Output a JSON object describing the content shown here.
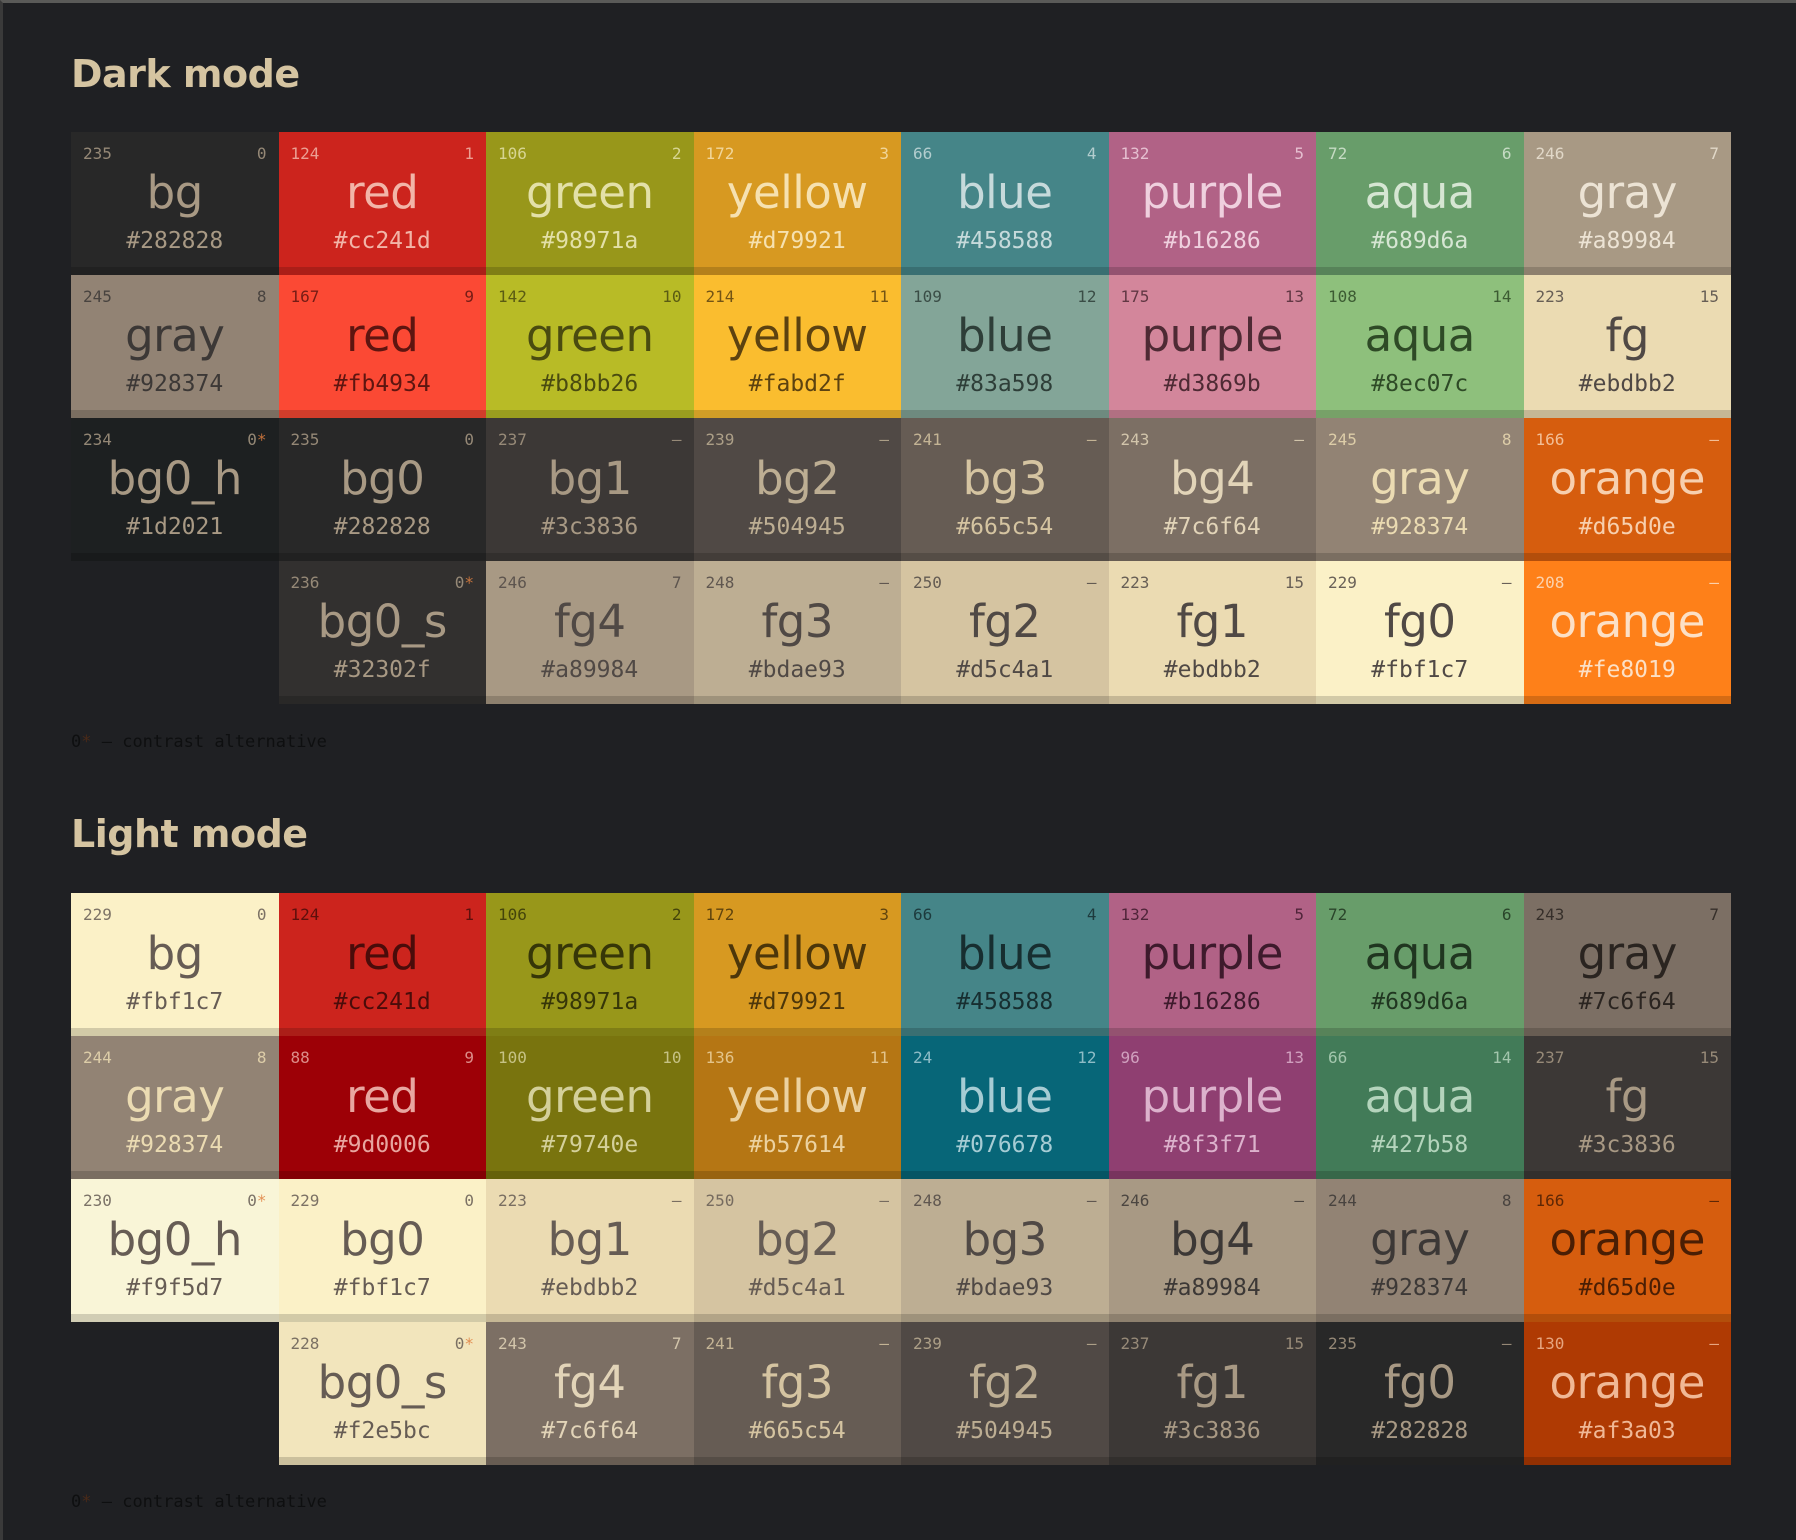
{
  "sections": [
    {
      "title": "Dark mode",
      "note": {
        "marker": "0",
        "star": "*",
        "text": " — contrast alternative"
      },
      "rows": [
        [
          {
            "left": "235",
            "right": "0",
            "name": "bg",
            "hex": "#282828",
            "bg": "#282828",
            "fg": "#a89984"
          },
          {
            "left": "124",
            "right": "1",
            "name": "red",
            "hex": "#cc241d",
            "bg": "#cc241d",
            "fg": "#f2b5a8"
          },
          {
            "left": "106",
            "right": "2",
            "name": "green",
            "hex": "#98971a",
            "bg": "#98971a",
            "fg": "#e3e0a8"
          },
          {
            "left": "172",
            "right": "3",
            "name": "yellow",
            "hex": "#d79921",
            "bg": "#d79921",
            "fg": "#f6e1b0"
          },
          {
            "left": "66",
            "right": "4",
            "name": "blue",
            "hex": "#458588",
            "bg": "#458588",
            "fg": "#c6dadb"
          },
          {
            "left": "132",
            "right": "5",
            "name": "purple",
            "hex": "#b16286",
            "bg": "#b16286",
            "fg": "#efd0de"
          },
          {
            "left": "72",
            "right": "6",
            "name": "aqua",
            "hex": "#689d6a",
            "bg": "#689d6a",
            "fg": "#d6e6d3"
          },
          {
            "left": "246",
            "right": "7",
            "name": "gray",
            "hex": "#a89984",
            "bg": "#a89984",
            "fg": "#ece3d4"
          }
        ],
        [
          {
            "left": "245",
            "right": "8",
            "name": "gray",
            "hex": "#928374",
            "bg": "#928374",
            "fg": "#3c3836"
          },
          {
            "left": "167",
            "right": "9",
            "name": "red",
            "hex": "#fb4934",
            "bg": "#fb4934",
            "fg": "#5e1510"
          },
          {
            "left": "142",
            "right": "10",
            "name": "green",
            "hex": "#b8bb26",
            "bg": "#b8bb26",
            "fg": "#4a4b10"
          },
          {
            "left": "214",
            "right": "11",
            "name": "yellow",
            "hex": "#fabd2f",
            "bg": "#fabd2f",
            "fg": "#5c4210"
          },
          {
            "left": "109",
            "right": "12",
            "name": "blue",
            "hex": "#83a598",
            "bg": "#83a598",
            "fg": "#2e3e38"
          },
          {
            "left": "175",
            "right": "13",
            "name": "purple",
            "hex": "#d3869b",
            "bg": "#d3869b",
            "fg": "#4e2a34"
          },
          {
            "left": "108",
            "right": "14",
            "name": "aqua",
            "hex": "#8ec07c",
            "bg": "#8ec07c",
            "fg": "#2e4a26"
          },
          {
            "left": "223",
            "right": "15",
            "name": "fg",
            "hex": "#ebdbb2",
            "bg": "#ebdbb2",
            "fg": "#504945"
          }
        ],
        [
          {
            "left": "234",
            "right": "0",
            "star": "*",
            "name": "bg0_h",
            "hex": "#1d2021",
            "bg": "#1d2021",
            "fg": "#a89984"
          },
          {
            "left": "235",
            "right": "0",
            "name": "bg0",
            "hex": "#282828",
            "bg": "#282828",
            "fg": "#a89984"
          },
          {
            "left": "237",
            "right": "—",
            "name": "bg1",
            "hex": "#3c3836",
            "bg": "#3c3836",
            "fg": "#a89984"
          },
          {
            "left": "239",
            "right": "—",
            "name": "bg2",
            "hex": "#504945",
            "bg": "#504945",
            "fg": "#bdae93"
          },
          {
            "left": "241",
            "right": "—",
            "name": "bg3",
            "hex": "#665c54",
            "bg": "#665c54",
            "fg": "#d5c4a1"
          },
          {
            "left": "243",
            "right": "—",
            "name": "bg4",
            "hex": "#7c6f64",
            "bg": "#7c6f64",
            "fg": "#e2d4b8"
          },
          {
            "left": "245",
            "right": "8",
            "name": "gray",
            "hex": "#928374",
            "bg": "#928374",
            "fg": "#ebdbb2"
          },
          {
            "left": "166",
            "right": "—",
            "name": "orange",
            "hex": "#d65d0e",
            "bg": "#d65d0e",
            "fg": "#f7cfae"
          }
        ],
        [
          null,
          {
            "left": "236",
            "right": "0",
            "star": "*",
            "name": "bg0_s",
            "hex": "#32302f",
            "bg": "#32302f",
            "fg": "#a89984"
          },
          {
            "left": "246",
            "right": "7",
            "name": "fg4",
            "hex": "#a89984",
            "bg": "#a89984",
            "fg": "#504945"
          },
          {
            "left": "248",
            "right": "—",
            "name": "fg3",
            "hex": "#bdae93",
            "bg": "#bdae93",
            "fg": "#504945"
          },
          {
            "left": "250",
            "right": "—",
            "name": "fg2",
            "hex": "#d5c4a1",
            "bg": "#d5c4a1",
            "fg": "#504945"
          },
          {
            "left": "223",
            "right": "15",
            "name": "fg1",
            "hex": "#ebdbb2",
            "bg": "#ebdbb2",
            "fg": "#504945"
          },
          {
            "left": "229",
            "right": "—",
            "name": "fg0",
            "hex": "#fbf1c7",
            "bg": "#fbf1c7",
            "fg": "#504945"
          },
          {
            "left": "208",
            "right": "—",
            "name": "orange",
            "hex": "#fe8019",
            "bg": "#fe8019",
            "fg": "#fce0c6"
          }
        ]
      ]
    },
    {
      "title": "Light mode",
      "note": {
        "marker": "0",
        "star": "*",
        "text": " — contrast alternative"
      },
      "rows": [
        [
          {
            "left": "229",
            "right": "0",
            "name": "bg",
            "hex": "#fbf1c7",
            "bg": "#fbf1c7",
            "fg": "#665c54"
          },
          {
            "left": "124",
            "right": "1",
            "name": "red",
            "hex": "#cc241d",
            "bg": "#cc241d",
            "fg": "#4a0c0a"
          },
          {
            "left": "106",
            "right": "2",
            "name": "green",
            "hex": "#98971a",
            "bg": "#98971a",
            "fg": "#363608"
          },
          {
            "left": "172",
            "right": "3",
            "name": "yellow",
            "hex": "#d79921",
            "bg": "#d79921",
            "fg": "#4c360a"
          },
          {
            "left": "66",
            "right": "4",
            "name": "blue",
            "hex": "#458588",
            "bg": "#458588",
            "fg": "#172e30"
          },
          {
            "left": "132",
            "right": "5",
            "name": "purple",
            "hex": "#b16286",
            "bg": "#b16286",
            "fg": "#3e1a2c"
          },
          {
            "left": "72",
            "right": "6",
            "name": "aqua",
            "hex": "#689d6a",
            "bg": "#689d6a",
            "fg": "#203620"
          },
          {
            "left": "243",
            "right": "7",
            "name": "gray",
            "hex": "#7c6f64",
            "bg": "#7c6f64",
            "fg": "#2a2420"
          }
        ],
        [
          {
            "left": "244",
            "right": "8",
            "name": "gray",
            "hex": "#928374",
            "bg": "#928374",
            "fg": "#ebdbb2"
          },
          {
            "left": "88",
            "right": "9",
            "name": "red",
            "hex": "#9d0006",
            "bg": "#9d0006",
            "fg": "#e8a6a0"
          },
          {
            "left": "100",
            "right": "10",
            "name": "green",
            "hex": "#79740e",
            "bg": "#79740e",
            "fg": "#d4d09a"
          },
          {
            "left": "136",
            "right": "11",
            "name": "yellow",
            "hex": "#b57614",
            "bg": "#b57614",
            "fg": "#ecd2a0"
          },
          {
            "left": "24",
            "right": "12",
            "name": "blue",
            "hex": "#076678",
            "bg": "#076678",
            "fg": "#a6ccd4"
          },
          {
            "left": "96",
            "right": "13",
            "name": "purple",
            "hex": "#8f3f71",
            "bg": "#8f3f71",
            "fg": "#dcb2cc"
          },
          {
            "left": "66",
            "right": "14",
            "name": "aqua",
            "hex": "#427b58",
            "bg": "#427b58",
            "fg": "#b4d4bc"
          },
          {
            "left": "237",
            "right": "15",
            "name": "fg",
            "hex": "#3c3836",
            "bg": "#3c3836",
            "fg": "#a89984"
          }
        ],
        [
          {
            "left": "230",
            "right": "0",
            "star": "*",
            "name": "bg0_h",
            "hex": "#f9f5d7",
            "bg": "#f9f5d7",
            "fg": "#665c54"
          },
          {
            "left": "229",
            "right": "0",
            "name": "bg0",
            "hex": "#fbf1c7",
            "bg": "#fbf1c7",
            "fg": "#665c54"
          },
          {
            "left": "223",
            "right": "—",
            "name": "bg1",
            "hex": "#ebdbb2",
            "bg": "#ebdbb2",
            "fg": "#665c54"
          },
          {
            "left": "250",
            "right": "—",
            "name": "bg2",
            "hex": "#d5c4a1",
            "bg": "#d5c4a1",
            "fg": "#665c54"
          },
          {
            "left": "248",
            "right": "—",
            "name": "bg3",
            "hex": "#bdae93",
            "bg": "#bdae93",
            "fg": "#504945"
          },
          {
            "left": "246",
            "right": "—",
            "name": "bg4",
            "hex": "#a89984",
            "bg": "#a89984",
            "fg": "#3c3836"
          },
          {
            "left": "244",
            "right": "8",
            "name": "gray",
            "hex": "#928374",
            "bg": "#928374",
            "fg": "#3c3836"
          },
          {
            "left": "166",
            "right": "—",
            "name": "orange",
            "hex": "#d65d0e",
            "bg": "#d65d0e",
            "fg": "#4a1e04"
          }
        ],
        [
          null,
          {
            "left": "228",
            "right": "0",
            "star": "*",
            "name": "bg0_s",
            "hex": "#f2e5bc",
            "bg": "#f2e5bc",
            "fg": "#665c54"
          },
          {
            "left": "243",
            "right": "7",
            "name": "fg4",
            "hex": "#7c6f64",
            "bg": "#7c6f64",
            "fg": "#e2d4b8"
          },
          {
            "left": "241",
            "right": "—",
            "name": "fg3",
            "hex": "#665c54",
            "bg": "#665c54",
            "fg": "#d5c4a1"
          },
          {
            "left": "239",
            "right": "—",
            "name": "fg2",
            "hex": "#504945",
            "bg": "#504945",
            "fg": "#bdae93"
          },
          {
            "left": "237",
            "right": "15",
            "name": "fg1",
            "hex": "#3c3836",
            "bg": "#3c3836",
            "fg": "#a89984"
          },
          {
            "left": "235",
            "right": "—",
            "name": "fg0",
            "hex": "#282828",
            "bg": "#282828",
            "fg": "#a89984"
          },
          {
            "left": "130",
            "right": "—",
            "name": "orange",
            "hex": "#af3a03",
            "bg": "#af3a03",
            "fg": "#f0b896"
          }
        ]
      ]
    }
  ]
}
